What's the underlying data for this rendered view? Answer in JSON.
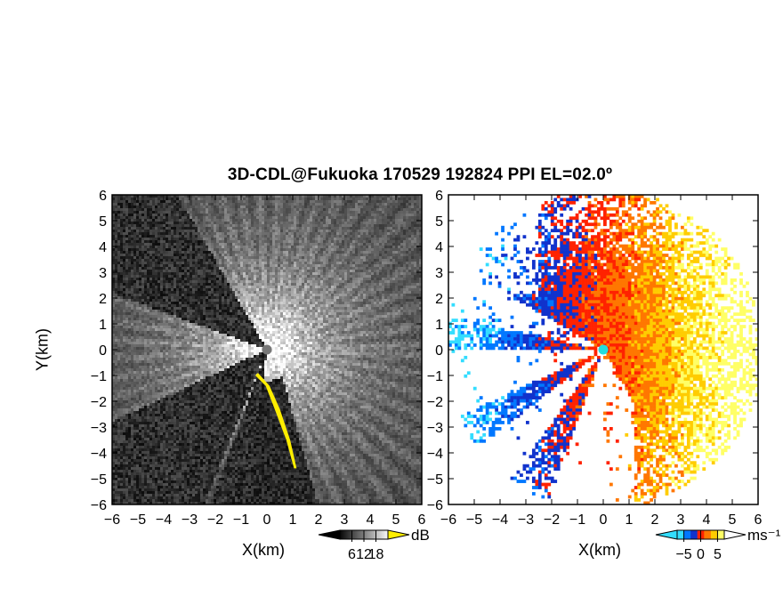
{
  "title": "3D-CDL@Fukuoka 170529 192824 PPI EL=02.0º",
  "colors": {
    "background": "#ffffff",
    "frame": "#000000",
    "radar_site_left": "#777777",
    "radar_site_right": "#22dddd",
    "clutter_highlight": "#ffee00"
  },
  "chart_data": [
    {
      "type": "heatmap",
      "name": "reflectivity",
      "title": "",
      "xlabel": "X(km)",
      "ylabel": "Y(km)",
      "xlim": [
        -6,
        6
      ],
      "ylim": [
        -6,
        6
      ],
      "x_ticks": [
        -6,
        -5,
        -4,
        -3,
        -2,
        -1,
        0,
        1,
        2,
        3,
        4,
        5,
        6
      ],
      "y_ticks": [
        -6,
        -5,
        -4,
        -3,
        -2,
        -1,
        0,
        1,
        2,
        3,
        4,
        5,
        6
      ],
      "colorbar": {
        "unit": "dB",
        "ticks": [
          6,
          12,
          18
        ],
        "range": [
          0,
          24
        ],
        "colormap": "grayscale",
        "extend": "both"
      },
      "radar_site": [
        0,
        0
      ],
      "blocked_sectors_deg": [
        [
          120,
          160
        ],
        [
          205,
          248
        ],
        [
          250,
          262
        ]
      ],
      "clutter_feature": "yellow band along southeast edge of blocked sector, from (-0.3,-1) to (1.1,-4.5)"
    },
    {
      "type": "heatmap",
      "name": "doppler_velocity",
      "title": "",
      "xlabel": "X(km)",
      "ylabel": "",
      "xlim": [
        -6,
        6
      ],
      "ylim": [
        -6,
        6
      ],
      "x_ticks": [
        -6,
        -5,
        -4,
        -3,
        -2,
        -1,
        0,
        1,
        2,
        3,
        4,
        5,
        6
      ],
      "y_ticks": [
        -6,
        -5,
        -4,
        -3,
        -2,
        -1,
        0,
        1,
        2,
        3,
        4,
        5,
        6
      ],
      "colorbar": {
        "unit": "ms⁻¹",
        "ticks": [
          -5,
          0,
          5
        ],
        "range": [
          -7,
          7
        ],
        "colormap": [
          "#33ddff",
          "#0077ff",
          "#1133cc",
          "#ff2200",
          "#ff7700",
          "#ffcc00",
          "#ffff66"
        ],
        "extend": "both"
      },
      "radar_site": [
        0,
        0
      ],
      "description": "negative (blue) velocities to the west, positive (orange/yellow) velocities to the east"
    }
  ]
}
